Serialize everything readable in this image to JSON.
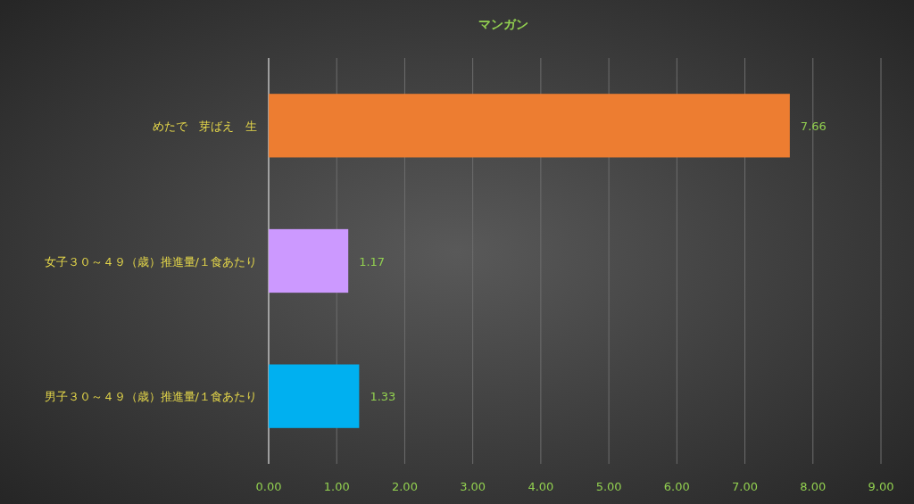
{
  "chart_data": {
    "type": "bar",
    "orientation": "horizontal",
    "title": "マンガン",
    "categories": [
      "めたで　芽ばえ　生",
      "女子３０～４９（歳）推進量/１食あたり",
      "男子３０～４９（歳）推進量/１食あたり"
    ],
    "values": [
      7.66,
      1.17,
      1.33
    ],
    "colors": [
      "#ed7d31",
      "#cc99ff",
      "#00b0f0"
    ],
    "xlim": [
      0,
      9
    ],
    "xticks": [
      {
        "value": 0,
        "label": "0.00"
      },
      {
        "value": 1,
        "label": "1.00"
      },
      {
        "value": 2,
        "label": "2.00"
      },
      {
        "value": 3,
        "label": "3.00"
      },
      {
        "value": 4,
        "label": "4.00"
      },
      {
        "value": 5,
        "label": "5.00"
      },
      {
        "value": 6,
        "label": "6.00"
      },
      {
        "value": 7,
        "label": "7.00"
      },
      {
        "value": 8,
        "label": "8.00"
      },
      {
        "value": 9,
        "label": "9.00"
      }
    ],
    "grid": "x",
    "data_labels": true
  }
}
